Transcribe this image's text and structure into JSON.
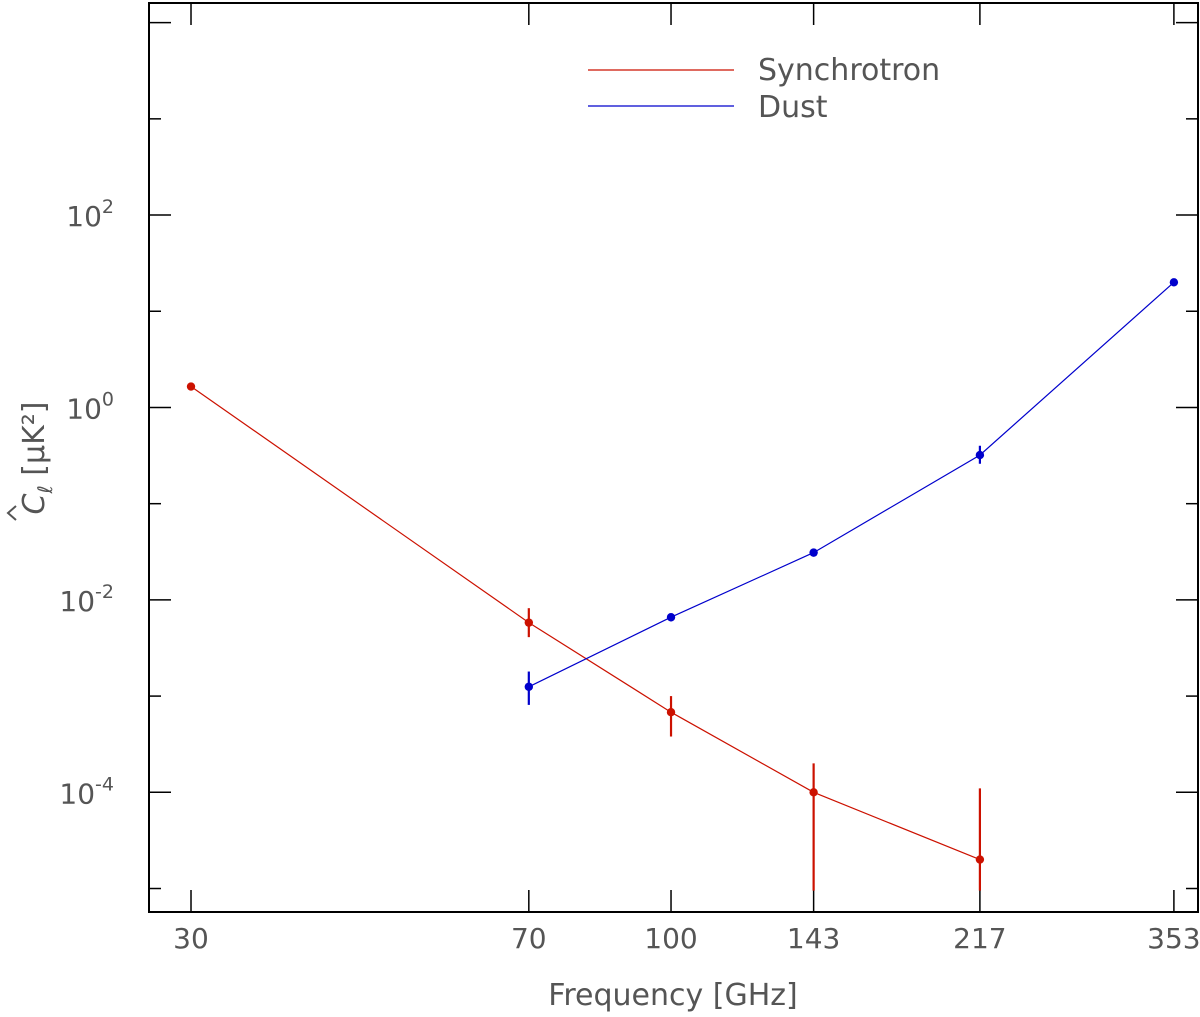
{
  "chart_data": {
    "type": "line",
    "xlabel": "Frequency [GHz]",
    "ylabel": "C_ℓ [μK²]",
    "ylabel_main": "C",
    "ylabel_sub": "ℓ",
    "ylabel_unit": "[μK²]",
    "xscale": "log",
    "yscale": "log",
    "xlim": [
      27,
      375
    ],
    "ylim": [
      5.7e-06,
      16000
    ],
    "xticks": [
      30,
      70,
      100,
      143,
      217,
      353
    ],
    "xtick_labels": [
      "30",
      "70",
      "100",
      "143",
      "217",
      "353"
    ],
    "yticks": [
      0.0001,
      0.01,
      1,
      100
    ],
    "ytick_labels": [
      {
        "base": "10",
        "exp": "-4"
      },
      {
        "base": "10",
        "exp": "-2"
      },
      {
        "base": "10",
        "exp": "0"
      },
      {
        "base": "10",
        "exp": "2"
      }
    ],
    "legend_position": "top-center",
    "series": [
      {
        "name": "Synchrotron",
        "color": "#cc1100",
        "points": [
          {
            "x": 30,
            "y": 1.65,
            "lo": null,
            "hi": null
          },
          {
            "x": 70,
            "y": 0.0058,
            "lo": 0.0041,
            "hi": 0.0082
          },
          {
            "x": 100,
            "y": 0.00068,
            "lo": 0.00038,
            "hi": 0.001
          },
          {
            "x": 143,
            "y": 0.0001,
            "lo": 9.5e-06,
            "hi": 0.0002
          },
          {
            "x": 217,
            "y": 2e-05,
            "lo": 9.5e-06,
            "hi": 0.00011
          }
        ]
      },
      {
        "name": "Dust",
        "color": "#0000cc",
        "points": [
          {
            "x": 70,
            "y": 0.00125,
            "lo": 0.00081,
            "hi": 0.0018
          },
          {
            "x": 100,
            "y": 0.0066,
            "lo": 0.006,
            "hi": 0.0072
          },
          {
            "x": 143,
            "y": 0.031,
            "lo": 0.029,
            "hi": 0.033
          },
          {
            "x": 217,
            "y": 0.32,
            "lo": 0.26,
            "hi": 0.4
          },
          {
            "x": 353,
            "y": 20,
            "lo": 19,
            "hi": 21
          }
        ]
      }
    ]
  }
}
